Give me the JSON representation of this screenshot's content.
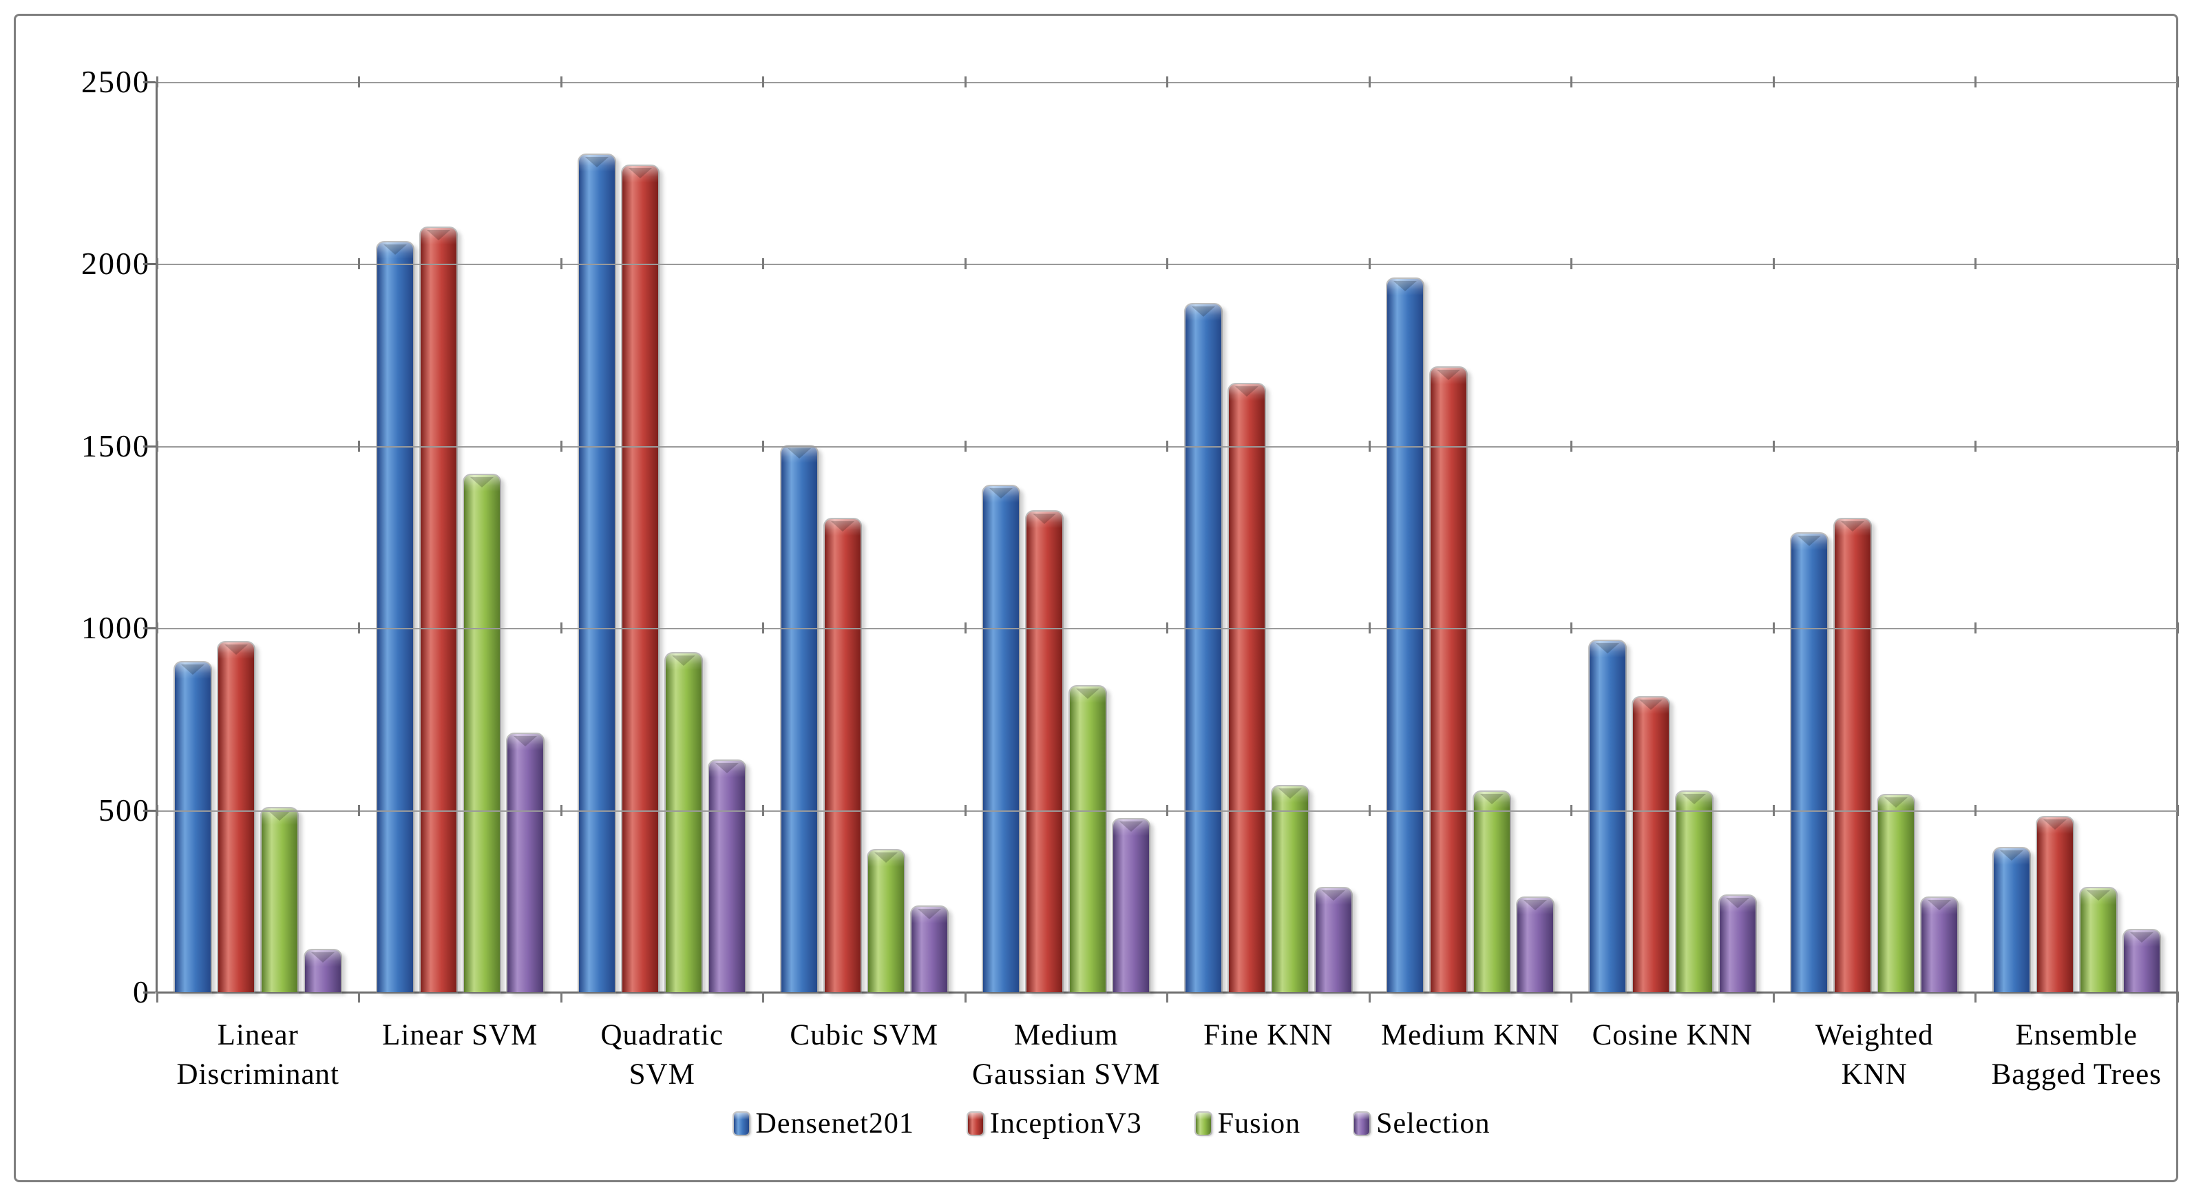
{
  "chart_data": {
    "type": "bar",
    "title": "",
    "xlabel": "",
    "ylabel": "",
    "categories": [
      "Linear Discriminant",
      "Linear SVM",
      "Quadratic SVM",
      "Cubic SVM",
      "Medium Gaussian SVM",
      "Fine KNN",
      "Medium KNN",
      "Cosine KNN",
      "Weighted KNN",
      "Ensemble Bagged Trees"
    ],
    "xtick_lines": [
      "Linear\nDiscriminant",
      "Linear SVM",
      "Quadratic\nSVM",
      "Cubic SVM",
      "Medium\nGaussian SVM",
      "Fine KNN",
      "Medium KNN",
      "Cosine KNN",
      "Weighted\nKNN",
      "Ensemble\nBagged Trees"
    ],
    "series": [
      {
        "name": "Densenet201",
        "color": "#3D74BC",
        "light": "#6FA3DC",
        "dark": "#24488A",
        "values": [
          905,
          2060,
          2300,
          1500,
          1390,
          1890,
          1960,
          965,
          1260,
          395
        ]
      },
      {
        "name": "InceptionV3",
        "color": "#C2413A",
        "light": "#DD776E",
        "dark": "#7E1F1B",
        "values": [
          960,
          2100,
          2270,
          1300,
          1320,
          1670,
          1715,
          810,
          1300,
          480
        ]
      },
      {
        "name": "Fusion",
        "color": "#94BF4B",
        "light": "#BCD983",
        "dark": "#5A7D2A",
        "values": [
          505,
          1420,
          930,
          390,
          840,
          565,
          550,
          550,
          540,
          285
        ]
      },
      {
        "name": "Selection",
        "color": "#8667AD",
        "light": "#A98EC8",
        "dark": "#4E3A70",
        "values": [
          115,
          710,
          635,
          235,
          475,
          285,
          260,
          265,
          260,
          170
        ]
      }
    ],
    "ylim": [
      0,
      2500
    ],
    "yticks": [
      0,
      500,
      1000,
      1500,
      2000,
      2500
    ],
    "grid": "horizontal",
    "legend_position": "bottom",
    "axis_color": "#6e6e6e",
    "gridline_color": "#9a9a9a"
  }
}
